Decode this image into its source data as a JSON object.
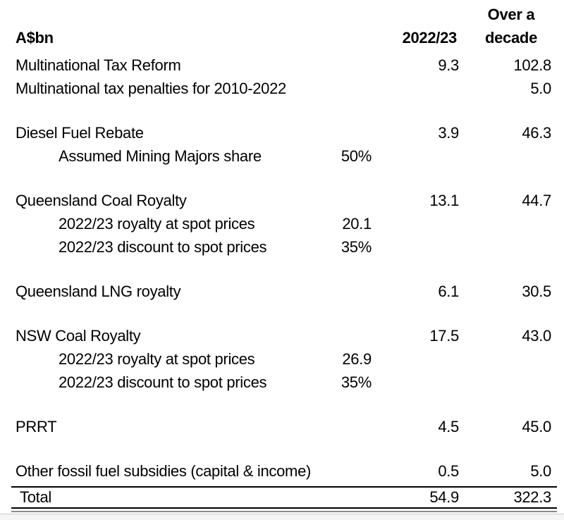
{
  "doc": {
    "unit_header": "A$bn",
    "col_fy_header": "2022/23",
    "col_decade_header_line1": "Over a",
    "col_decade_header_line2": "decade",
    "rows": [
      {
        "label": "Multinational Tax Reform",
        "fy": "9.3",
        "decade": "102.8"
      },
      {
        "label": "Multinational tax penalties for 2010-2022",
        "decade": "5.0"
      },
      {
        "spacer": true
      },
      {
        "label": "Diesel Fuel Rebate",
        "fy": "3.9",
        "decade": "46.3"
      },
      {
        "label": "Assumed Mining Majors share",
        "indent": true,
        "mid": "50%"
      },
      {
        "spacer": true
      },
      {
        "label": "Queensland Coal Royalty",
        "fy": "13.1",
        "decade": "44.7"
      },
      {
        "label": "2022/23 royalty at spot prices",
        "indent": true,
        "mid": "20.1"
      },
      {
        "label": "2022/23 discount to spot prices",
        "indent": true,
        "mid": "35%"
      },
      {
        "spacer": true
      },
      {
        "label": "Queensland LNG royalty",
        "fy": "6.1",
        "decade": "30.5"
      },
      {
        "spacer": true
      },
      {
        "label": "NSW Coal Royalty",
        "fy": "17.5",
        "decade": "43.0"
      },
      {
        "label": "2022/23 royalty at spot prices",
        "indent": true,
        "mid": "26.9"
      },
      {
        "label": "2022/23 discount to spot prices",
        "indent": true,
        "mid": "35%"
      },
      {
        "spacer": true
      },
      {
        "label": "PRRT",
        "fy": "4.5",
        "decade": "45.0"
      },
      {
        "spacer": true
      },
      {
        "label": "Other fossil fuel subsidies (capital & income)",
        "fy": "0.5",
        "decade": "5.0"
      }
    ],
    "total": {
      "label": "Total",
      "fy": "54.9",
      "decade": "322.3"
    },
    "colors": {
      "text": "#000000",
      "rule_black": "#000000",
      "rule_gray": "#8a8a8a",
      "bottom_strip": "#f5f5f5"
    }
  }
}
